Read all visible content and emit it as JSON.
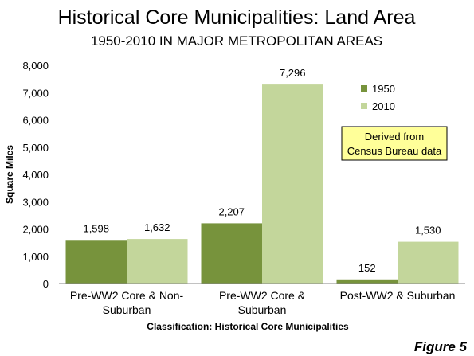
{
  "chart_data": {
    "type": "bar",
    "title": "Historical Core Municipalities: Land Area",
    "subtitle": "1950-2010 IN MAJOR METROPOLITAN AREAS",
    "xlabel": "Classification: Historical Core Municipalities",
    "ylabel": "Square Miles",
    "ylim": [
      0,
      8000
    ],
    "yticks": [
      "0",
      "1,000",
      "2,000",
      "3,000",
      "4,000",
      "5,000",
      "6,000",
      "7,000",
      "8,000"
    ],
    "categories": [
      [
        "Pre-WW2 Core & Non-",
        "Suburban"
      ],
      [
        "Pre-WW2 Core &",
        "Suburban"
      ],
      [
        "Post-WW2 & Suburban"
      ]
    ],
    "series": [
      {
        "name": "1950",
        "color": "#77933c",
        "values": [
          1598,
          2207,
          152
        ],
        "labels": [
          "1,598",
          "2,207",
          "152"
        ]
      },
      {
        "name": "2010",
        "color": "#c3d69b",
        "values": [
          1632,
          7296,
          1530
        ],
        "labels": [
          "1,632",
          "7,296",
          "1,530"
        ]
      }
    ],
    "legend_position": "top-right",
    "grid": false,
    "annotation": {
      "lines": [
        "Derived from",
        "Census Bureau data"
      ],
      "fill": "#ffff99"
    },
    "figure_label": "Figure 5"
  }
}
